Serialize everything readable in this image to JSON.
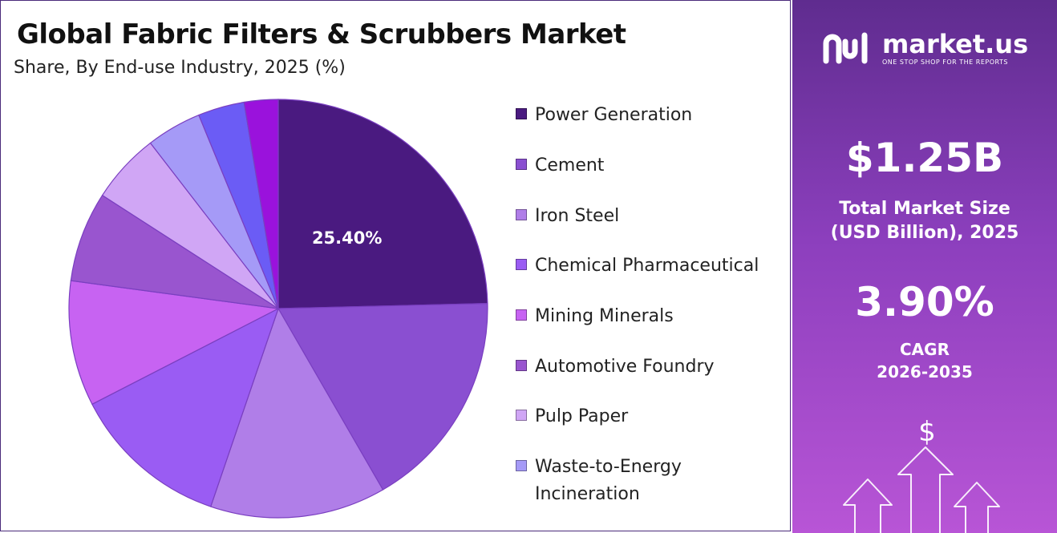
{
  "header": {
    "title": "Global Fabric Filters & Scrubbers Market",
    "subtitle": "Share, By End-use Industry, 2025 (%)"
  },
  "chart_data": {
    "type": "pie",
    "title": "Global Fabric Filters & Scrubbers Market",
    "subtitle": "Share, By End-use Industry, 2025 (%)",
    "legend_position": "right",
    "slices": [
      {
        "name": "Power Generation",
        "value": 25.4,
        "label": "25.40%",
        "color": "#4a1a80"
      },
      {
        "name": "Cement",
        "value": 17.6,
        "color": "#8a4fd1"
      },
      {
        "name": "Iron Steel",
        "value": 14.0,
        "color": "#b07ee8"
      },
      {
        "name": "Chemical Pharmaceutical",
        "value": 12.6,
        "color": "#9a5cf3"
      },
      {
        "name": "Mining Minerals",
        "value": 10.0,
        "color": "#c763f2"
      },
      {
        "name": "Automotive Foundry",
        "value": 7.2,
        "color": "#9955cf"
      },
      {
        "name": "Pulp Paper",
        "value": 5.6,
        "color": "#d0a6f5"
      },
      {
        "name": "Waste-to-Energy Incineration",
        "value": 4.4,
        "color": "#a59af7"
      },
      {
        "name": "",
        "value": 3.7,
        "color": "#6b5cf5"
      },
      {
        "name": "",
        "value": 2.7,
        "color": "#9a12dc"
      }
    ]
  },
  "legend": {
    "items": [
      {
        "label": "Power Generation",
        "color": "#4a1a80"
      },
      {
        "label": "Cement",
        "color": "#8a4fd1"
      },
      {
        "label": "Iron Steel",
        "color": "#b07ee8"
      },
      {
        "label": "Chemical Pharmaceutical",
        "color": "#9a5cf3"
      },
      {
        "label": "Mining Minerals",
        "color": "#c763f2"
      },
      {
        "label": "Automotive Foundry",
        "color": "#9955cf"
      },
      {
        "label": "Pulp Paper",
        "color": "#d0a6f5"
      },
      {
        "label": "Waste-to-Energy Incineration",
        "color": "#a59af7"
      }
    ]
  },
  "sidebar": {
    "brand": "market.us",
    "tagline": "ONE STOP SHOP FOR THE REPORTS",
    "market_size": "$1.25B",
    "market_size_label": "Total Market Size\n(USD Billion), 2025",
    "cagr": "3.90%",
    "cagr_label": "CAGR\n2026-2035",
    "currency_symbol": "$",
    "logo_icon": "market-us-logo-icon",
    "art_icon": "growth-arrows-icon"
  }
}
